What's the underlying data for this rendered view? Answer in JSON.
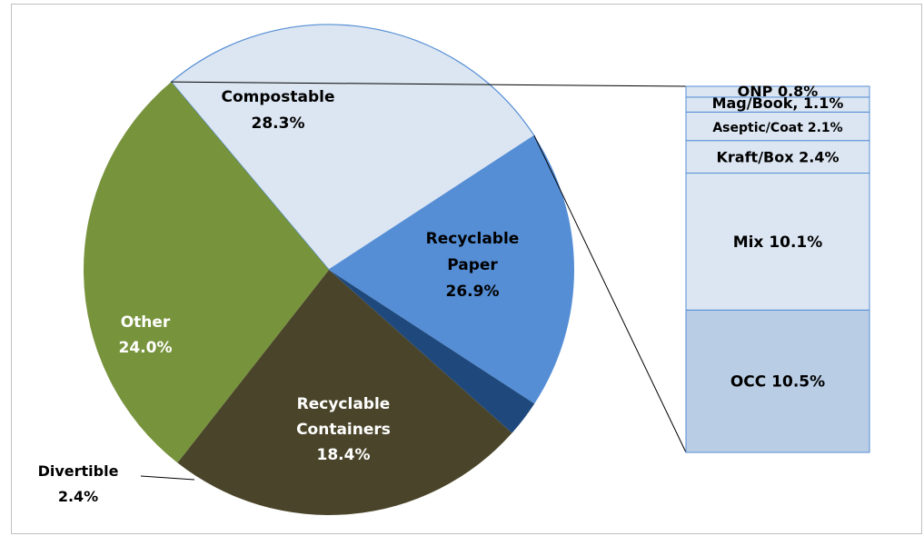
{
  "chart_data": {
    "type": "bar-of-pie",
    "pie": {
      "slices": [
        {
          "name": "Recyclable Paper",
          "label_lines": [
            "Recyclable",
            "Paper",
            "26.9%"
          ],
          "value": 26.9,
          "color": "#dce6f2",
          "text_color": "#000000"
        },
        {
          "name": "Recyclable Containers",
          "label_lines": [
            "Recyclable",
            "Containers",
            "18.4%"
          ],
          "value": 18.4,
          "color": "#558ed5",
          "text_color": "#ffffff"
        },
        {
          "name": "Divertible",
          "label_lines": [
            "Divertible",
            "2.4%"
          ],
          "value": 2.4,
          "color": "#1f497d",
          "text_color": "#000000"
        },
        {
          "name": "Other",
          "label_lines": [
            "Other",
            "24.0%"
          ],
          "value": 24.0,
          "color": "#4a452a",
          "text_color": "#ffffff"
        },
        {
          "name": "Compostable",
          "label_lines": [
            "Compostable",
            "28.3%"
          ],
          "value": 28.3,
          "color": "#77933c",
          "text_color": "#000000"
        }
      ]
    },
    "bar": {
      "parent": "Recyclable Paper",
      "segments": [
        {
          "name": "OCC",
          "label": "OCC 10.5%",
          "value": 10.5,
          "color": "#b9cde5"
        },
        {
          "name": "Mix",
          "label": "Mix 10.1%",
          "value": 10.1,
          "color": "#dce6f2"
        },
        {
          "name": "Kraft/Box",
          "label": "Kraft/Box 2.4%",
          "value": 2.4,
          "color": "#dce6f2"
        },
        {
          "name": "Aseptic/Coat",
          "label": "Aseptic/Coat 2.1%",
          "value": 2.1,
          "color": "#dce6f2"
        },
        {
          "name": "Mag/Book",
          "label": "Mag/Book, 1.1%",
          "value": 1.1,
          "color": "#dce6f2"
        },
        {
          "name": "ONP",
          "label": "ONP 0.8%",
          "value": 0.8,
          "color": "#dce6f2"
        }
      ]
    }
  }
}
